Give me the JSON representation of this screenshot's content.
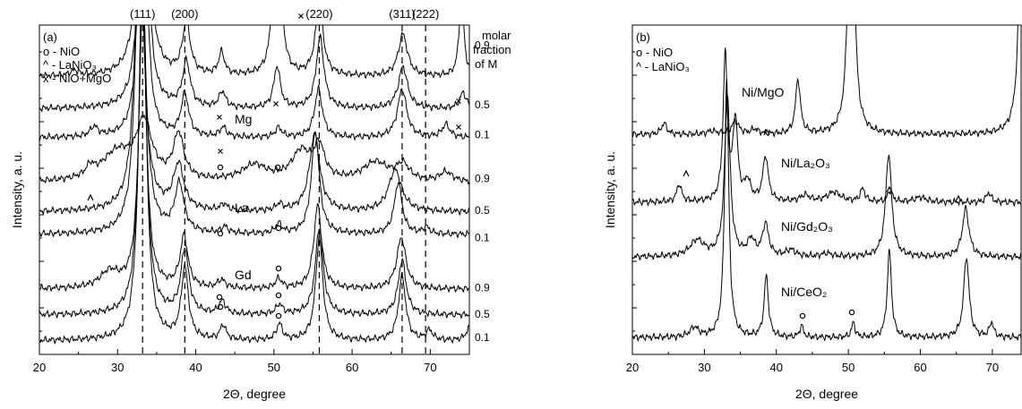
{
  "chart_data": [
    {
      "type": "line",
      "panel_label": "(a)",
      "xlabel": "2Θ, degree",
      "ylabel": "Intensity, a. u.",
      "xlim": [
        20,
        75
      ],
      "xticks": [
        20,
        30,
        40,
        50,
        60,
        70
      ],
      "grid": false,
      "vlines": [
        33.2,
        38.6,
        55.8,
        66.4,
        69.4
      ],
      "peak_labels": [
        {
          "text": "(111)",
          "x": 33.2
        },
        {
          "text": "(200)",
          "x": 38.6
        },
        {
          "text": "(220)",
          "x": 55.8
        },
        {
          "text": "(311)",
          "x": 66.4
        },
        {
          "text": "(222)",
          "x": 69.4
        }
      ],
      "legend": [
        "o - NiO",
        "^ - LaNiO₃",
        "x - NiO+MgO"
      ],
      "right_title": [
        "molar",
        "fraction",
        "of M"
      ],
      "group_labels": [
        "Mg",
        "La",
        "Gd"
      ],
      "series": [
        {
          "group": "Mg",
          "fraction": "0.9",
          "offset": 8.4,
          "peaks": [
            [
              24.5,
              0.15,
              0.6
            ],
            [
              33.3,
              14,
              0.55
            ],
            [
              38.8,
              1.6,
              0.6
            ],
            [
              43.3,
              0.7,
              0.45
            ],
            [
              50.4,
              11,
              0.35
            ],
            [
              55.8,
              2.2,
              0.6
            ],
            [
              66.5,
              1.3,
              0.7
            ],
            [
              74,
              2.6,
              0.35
            ]
          ]
        },
        {
          "group": "Mg",
          "fraction": "0.5",
          "offset": 7.4,
          "peaks": [
            [
              33.3,
              10,
              0.6
            ],
            [
              38.8,
              1.4,
              0.6
            ],
            [
              43.4,
              0.5,
              0.5
            ],
            [
              50.4,
              1.3,
              0.5
            ],
            [
              55.9,
              2.2,
              0.6
            ],
            [
              66.5,
              1.3,
              0.7
            ],
            [
              74.2,
              0.5,
              0.5
            ]
          ]
        },
        {
          "group": "Mg",
          "fraction": "0.1",
          "offset": 6.5,
          "peaks": [
            [
              27,
              0.3,
              0.6
            ],
            [
              33.2,
              12,
              0.5
            ],
            [
              38.6,
              1.3,
              0.6
            ],
            [
              43.5,
              0.3,
              0.5
            ],
            [
              50.6,
              0.3,
              0.5
            ],
            [
              55.7,
              1.5,
              0.6
            ],
            [
              66.4,
              1.5,
              0.7
            ],
            [
              72,
              0.4,
              0.6
            ]
          ]
        },
        {
          "group": "La",
          "fraction": "0.9",
          "offset": 5.1,
          "peaks": [
            [
              26.5,
              0.3,
              0.6
            ],
            [
              30,
              0.9,
              2.5
            ],
            [
              33.4,
              1.7,
              1.2
            ],
            [
              37.8,
              1.4,
              0.8
            ],
            [
              47.5,
              0.5,
              2
            ],
            [
              53.5,
              0.9,
              1.5
            ],
            [
              55.8,
              1.0,
              0.8
            ],
            [
              63,
              0.6,
              2
            ],
            [
              66.5,
              0.5,
              1
            ],
            [
              72,
              0.3,
              1
            ]
          ]
        },
        {
          "group": "La",
          "fraction": "0.5",
          "offset": 4.2,
          "peaks": [
            [
              32.8,
              9,
              0.7
            ],
            [
              37.8,
              1.4,
              0.8
            ],
            [
              43.6,
              0.2,
              0.5
            ],
            [
              50.7,
              0.2,
              0.5
            ],
            [
              55.2,
              2.4,
              0.8
            ],
            [
              65.5,
              1.3,
              1
            ]
          ]
        },
        {
          "group": "La",
          "fraction": "0.1",
          "offset": 3.5,
          "peaks": [
            [
              32.9,
              12,
              0.6
            ],
            [
              37.9,
              1.5,
              0.7
            ],
            [
              43.7,
              0.2,
              0.5
            ],
            [
              50.6,
              0.3,
              0.5
            ],
            [
              55.3,
              3.2,
              0.6
            ],
            [
              65.9,
              1.6,
              0.6
            ],
            [
              69.5,
              0.2,
              0.5
            ]
          ]
        },
        {
          "group": "Gd",
          "fraction": "0.9",
          "offset": 1.8,
          "peaks": [
            [
              29,
              0.5,
              1.5
            ],
            [
              33.2,
              9,
              0.55
            ],
            [
              38.5,
              1.6,
              0.6
            ],
            [
              43.3,
              0.25,
              0.6
            ],
            [
              50.6,
              0.3,
              0.5
            ],
            [
              55.6,
              2.6,
              0.6
            ],
            [
              66.3,
              1.6,
              0.7
            ]
          ]
        },
        {
          "group": "Gd",
          "fraction": "0.5",
          "offset": 1.0,
          "peaks": [
            [
              33.2,
              11,
              0.55
            ],
            [
              38.6,
              2.0,
              0.6
            ],
            [
              43.4,
              0.4,
              0.5
            ],
            [
              50.7,
              0.3,
              0.5
            ],
            [
              55.8,
              2.7,
              0.6
            ],
            [
              66.4,
              1.7,
              0.6
            ]
          ]
        },
        {
          "group": "Gd",
          "fraction": "0.1",
          "offset": 0.2,
          "peaks": [
            [
              33.2,
              12,
              0.55
            ],
            [
              38.6,
              2.2,
              0.55
            ],
            [
              43.5,
              0.45,
              0.45
            ],
            [
              50.7,
              0.5,
              0.45
            ],
            [
              55.8,
              3.2,
              0.55
            ],
            [
              66.4,
              2.0,
              0.55
            ],
            [
              69.9,
              0.3,
              0.5
            ],
            [
              75,
              0.4,
              0.5
            ]
          ]
        }
      ]
    },
    {
      "type": "line",
      "panel_label": "(b)",
      "xlabel": "2Θ, degree",
      "ylabel": "Intensity, a. u.",
      "xlim": [
        20,
        74
      ],
      "xticks": [
        20,
        30,
        40,
        50,
        60,
        70
      ],
      "grid": false,
      "legend": [
        "o - NiO",
        "^ - LaNiO₃"
      ],
      "series": [
        {
          "name": "Ni/MgO",
          "offset": 6.6,
          "peaks": [
            [
              24.4,
              0.35,
              0.45
            ],
            [
              31,
              0.1,
              0.8
            ],
            [
              34.3,
              0.4,
              0.6
            ],
            [
              37,
              0.15,
              0.6
            ],
            [
              43,
              1.7,
              0.4
            ],
            [
              50.4,
              12,
              0.4
            ],
            [
              74.2,
              12,
              0.4
            ]
          ]
        },
        {
          "name": "Ni/La₂O₃",
          "offset": 4.5,
          "peaks": [
            [
              26.5,
              0.55,
              0.4
            ],
            [
              32.9,
              4.5,
              0.35
            ],
            [
              34.3,
              2.5,
              0.4
            ],
            [
              36,
              0.6,
              0.5
            ],
            [
              38.5,
              1.4,
              0.45
            ],
            [
              44,
              0.2,
              0.8
            ],
            [
              48,
              0.3,
              1.2
            ],
            [
              52,
              0.4,
              0.4
            ],
            [
              55.8,
              0.35,
              0.4
            ],
            [
              60,
              0.15,
              1
            ],
            [
              69.5,
              0.3,
              0.4
            ]
          ]
        },
        {
          "name": "Ni/Gd₂O₃",
          "offset": 2.8,
          "peaks": [
            [
              29,
              0.5,
              1.2
            ],
            [
              33.2,
              5,
              0.45
            ],
            [
              36.5,
              0.5,
              0.6
            ],
            [
              38.5,
              1.0,
              0.5
            ],
            [
              42,
              0.2,
              0.8
            ],
            [
              47,
              0.1,
              0.8
            ],
            [
              55.6,
              3.2,
              0.5
            ],
            [
              66.3,
              1.5,
              0.55
            ]
          ]
        },
        {
          "name": "Ni/CeO₂",
          "offset": 0.3,
          "peaks": [
            [
              28.6,
              0.3,
              0.7
            ],
            [
              33.1,
              8,
              0.35
            ],
            [
              38.6,
              1.9,
              0.35
            ],
            [
              43.5,
              0.35,
              0.3
            ],
            [
              50.7,
              0.45,
              0.3
            ],
            [
              55.7,
              2.7,
              0.35
            ],
            [
              66.4,
              2.5,
              0.45
            ],
            [
              69.9,
              0.45,
              0.35
            ]
          ]
        }
      ]
    }
  ]
}
